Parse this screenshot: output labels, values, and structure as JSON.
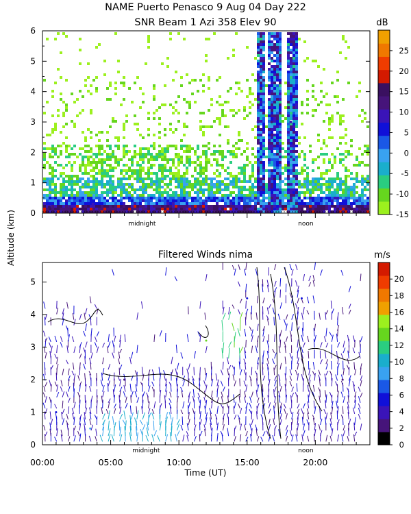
{
  "title": {
    "line1": "NAME Puerto Penasco    9 Aug 04 Day 222",
    "line2": "SNR Beam 1 Azi 358 Elev 90"
  },
  "shared": {
    "ylabel": "Altitude (km)",
    "xlabel": "Time (UT)",
    "marker_labels": {
      "midnight": "midnight",
      "noon": "noon"
    }
  },
  "chart_data": [
    {
      "id": "snr",
      "type": "heatmap",
      "title": "",
      "ylim": [
        0,
        6
      ],
      "yticks": [
        "0",
        "1",
        "2",
        "3",
        "4",
        "5",
        "6"
      ],
      "xlim": [
        0,
        24
      ],
      "colorbar": {
        "unit": "dB",
        "range": [
          -15,
          30
        ],
        "tick_labels": [
          "-15",
          "-10",
          "-5",
          "0",
          "5",
          "10",
          "15",
          "20",
          "25"
        ],
        "colors": [
          "#9cf01e",
          "#66d61e",
          "#2acd80",
          "#1aaecc",
          "#39a2f0",
          "#1a58e6",
          "#1010d8",
          "#3a14b8",
          "#46147a",
          "#3a1060",
          "#d41a00",
          "#f03c00",
          "#f07800",
          "#f0a000"
        ]
      },
      "observations": [
        {
          "t": 0.5,
          "z": 0.2,
          "db": 16
        },
        {
          "t": 2.0,
          "z": 0.2,
          "db": 11
        },
        {
          "t": 3.7,
          "z": 0.3,
          "db": 8
        },
        {
          "t": 5.0,
          "z": 1.0,
          "db": 0
        },
        {
          "t": 7.5,
          "z": 0.8,
          "db": -3
        },
        {
          "t": 12.0,
          "z": 0.4,
          "db": 9
        },
        {
          "t": 15.8,
          "z": 3.0,
          "db": 10
        },
        {
          "t": 16.8,
          "z": 3.0,
          "db": 11
        },
        {
          "t": 18.2,
          "z": 3.0,
          "db": 10
        },
        {
          "t": 22.5,
          "z": 0.2,
          "db": 17
        }
      ]
    },
    {
      "id": "winds",
      "type": "scatter",
      "title": "Filtered Winds nima",
      "ylim": [
        0,
        5.6
      ],
      "yticks": [
        "0",
        "1",
        "2",
        "3",
        "4",
        "5"
      ],
      "xlim": [
        0,
        24
      ],
      "xticks": [
        "00:00",
        "05:00",
        "10:00",
        "15:00",
        "20:00"
      ],
      "colorbar": {
        "unit": "m/s",
        "range": [
          0,
          22
        ],
        "tick_labels": [
          "0",
          "2",
          "4",
          "6",
          "8",
          "10",
          "12",
          "14",
          "16",
          "18",
          "20"
        ],
        "colors": [
          "#000000",
          "#46147a",
          "#3a14b8",
          "#1010d8",
          "#1a58e6",
          "#39a2f0",
          "#1aaecc",
          "#2acd80",
          "#66d61e",
          "#9cf01e",
          "#f0a000",
          "#f07800",
          "#f03c00",
          "#d41a00"
        ]
      },
      "observations": [
        {
          "t": 1.0,
          "z": 1.0,
          "speed": 6
        },
        {
          "t": 3.5,
          "z": 0.5,
          "speed": 9
        },
        {
          "t": 6.0,
          "z": 2.0,
          "speed": 3
        },
        {
          "t": 12.0,
          "z": 3.2,
          "speed": 14
        },
        {
          "t": 15.0,
          "z": 4.5,
          "speed": 5
        },
        {
          "t": 19.0,
          "z": 4.5,
          "speed": 6
        },
        {
          "t": 22.0,
          "z": 2.0,
          "speed": 3
        }
      ]
    }
  ]
}
